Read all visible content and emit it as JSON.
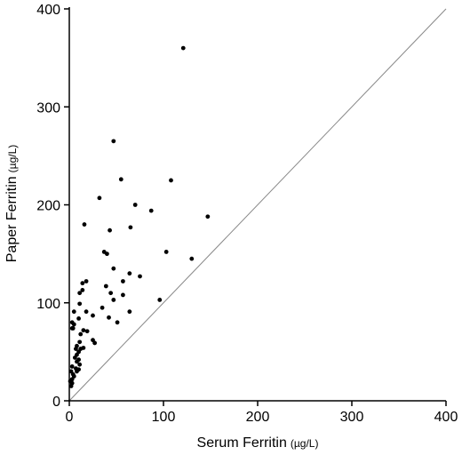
{
  "chart_data": {
    "type": "scatter",
    "title": "",
    "xlabel": "Serum Ferritin",
    "xlabel_unit": "(µg/L)",
    "ylabel": "Paper Ferritin",
    "ylabel_unit": "(µg/L)",
    "xlim": [
      0,
      400
    ],
    "ylim": [
      0,
      400
    ],
    "xticks": [
      "0",
      "100",
      "200",
      "300",
      "400"
    ],
    "yticks": [
      "0",
      "100",
      "200",
      "300",
      "400"
    ],
    "grid": false,
    "legend": "none",
    "reference_line": {
      "from": [
        0,
        0
      ],
      "to": [
        400,
        400
      ],
      "color": "#888888"
    },
    "point_color": "#000000",
    "series": [
      {
        "points": [
          [
            121,
            360
          ],
          [
            47,
            265
          ],
          [
            55,
            226
          ],
          [
            108,
            225
          ],
          [
            32,
            207
          ],
          [
            70,
            200
          ],
          [
            87,
            194
          ],
          [
            147,
            188
          ],
          [
            16,
            180
          ],
          [
            65,
            177
          ],
          [
            43,
            174
          ],
          [
            37,
            152
          ],
          [
            40,
            150
          ],
          [
            103,
            152
          ],
          [
            130,
            145
          ],
          [
            47,
            135
          ],
          [
            64,
            130
          ],
          [
            75,
            127
          ],
          [
            18,
            122
          ],
          [
            57,
            122
          ],
          [
            14,
            120
          ],
          [
            39,
            117
          ],
          [
            14,
            113
          ],
          [
            11,
            110
          ],
          [
            44,
            110
          ],
          [
            57,
            108
          ],
          [
            47,
            103
          ],
          [
            96,
            103
          ],
          [
            11,
            99
          ],
          [
            35,
            95
          ],
          [
            18,
            91
          ],
          [
            64,
            91
          ],
          [
            5,
            91
          ],
          [
            25,
            87
          ],
          [
            42,
            85
          ],
          [
            10,
            84
          ],
          [
            51,
            80
          ],
          [
            3,
            80
          ],
          [
            5,
            78
          ],
          [
            4,
            74
          ],
          [
            15,
            72
          ],
          [
            3,
            74
          ],
          [
            19,
            71
          ],
          [
            12,
            68
          ],
          [
            25,
            62
          ],
          [
            11,
            60
          ],
          [
            27,
            59
          ],
          [
            8,
            56
          ],
          [
            15,
            54
          ],
          [
            7,
            53
          ],
          [
            12,
            53
          ],
          [
            10,
            50
          ],
          [
            8,
            47
          ],
          [
            6,
            44
          ],
          [
            10,
            42
          ],
          [
            8,
            40
          ],
          [
            11,
            37
          ],
          [
            3,
            35
          ],
          [
            7,
            33
          ],
          [
            10,
            32
          ],
          [
            8,
            30
          ],
          [
            2,
            30
          ],
          [
            4,
            27
          ],
          [
            5,
            25
          ],
          [
            3,
            22
          ],
          [
            1,
            20
          ],
          [
            3,
            18
          ],
          [
            2,
            15
          ]
        ]
      }
    ]
  }
}
